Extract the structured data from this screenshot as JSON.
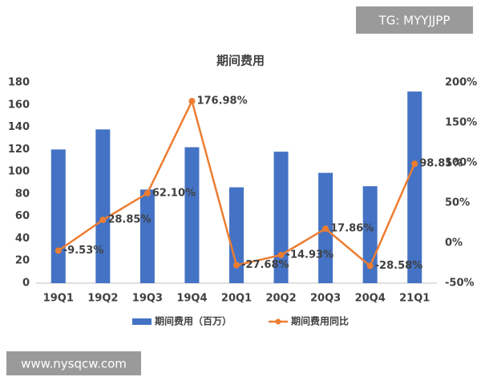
{
  "chart_data": {
    "type": "bar-line",
    "title": "期间费用",
    "categories": [
      "19Q1",
      "19Q2",
      "19Q3",
      "19Q4",
      "20Q1",
      "20Q2",
      "20Q3",
      "20Q4",
      "21Q1"
    ],
    "series": [
      {
        "name": "期间费用（百万）",
        "type": "bar",
        "color": "#4472c4",
        "values": [
          120,
          138,
          84,
          122,
          86,
          118,
          99,
          87,
          172
        ]
      },
      {
        "name": "期间费用同比",
        "type": "line",
        "axis": "y2",
        "color": "#ed7d31",
        "values": [
          -9.53,
          28.85,
          62.1,
          176.98,
          -27.68,
          -14.93,
          17.86,
          -28.58,
          98.85
        ],
        "value_labels": [
          "-9.53%",
          "28.85%",
          "62.10%",
          "176.98%",
          "-27.68%",
          "-14.93%",
          "17.86%",
          "-28.58%",
          "98.85%"
        ]
      }
    ],
    "ylim": [
      0,
      180
    ],
    "yticks": [
      0,
      20,
      40,
      60,
      80,
      100,
      120,
      140,
      160,
      180
    ],
    "y2lim": [
      -50,
      200
    ],
    "y2ticks": [
      {
        "value": -50,
        "label": "-50%"
      },
      {
        "value": 0,
        "label": "0%"
      },
      {
        "value": 50,
        "label": "50%"
      },
      {
        "value": 100,
        "label": "100%"
      },
      {
        "value": 150,
        "label": "150%"
      },
      {
        "value": 200,
        "label": "200%"
      }
    ],
    "grid": false,
    "legend": "bottom"
  },
  "watermarks": [
    "TG: MYYJJPP",
    "www.nysqcw.com"
  ]
}
